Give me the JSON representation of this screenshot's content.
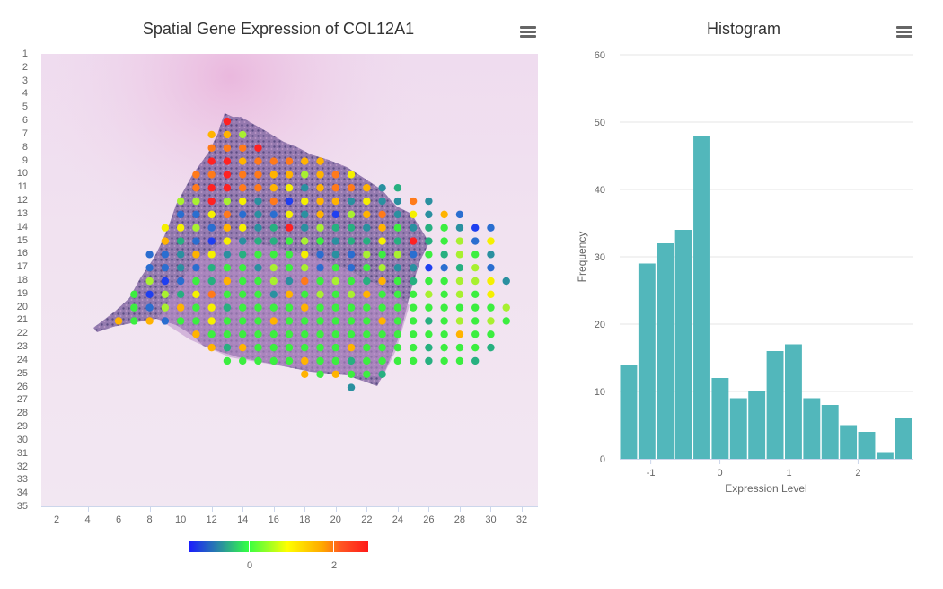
{
  "spatial_panel": {
    "title": "Spatial Gene Expression of COL12A1",
    "menu_icon": "hamburger-menu-icon",
    "colorbar": {
      "ticks": [
        "0",
        "2"
      ],
      "colors": [
        "#1a1aff",
        "#22ff44",
        "#ffff00",
        "#ff9900",
        "#ff1a1a"
      ]
    }
  },
  "histogram_panel": {
    "title": "Histogram",
    "menu_icon": "hamburger-menu-icon"
  },
  "chart_data": [
    {
      "type": "scatter",
      "title": "Spatial Gene Expression of COL12A1",
      "xlabel": "",
      "ylabel": "",
      "x_ticks": [
        "2",
        "4",
        "6",
        "8",
        "10",
        "12",
        "14",
        "16",
        "18",
        "20",
        "22",
        "24",
        "26",
        "28",
        "30",
        "32"
      ],
      "y_ticks": [
        "1",
        "2",
        "3",
        "4",
        "5",
        "6",
        "7",
        "8",
        "9",
        "10",
        "11",
        "12",
        "13",
        "14",
        "15",
        "16",
        "17",
        "18",
        "19",
        "20",
        "21",
        "22",
        "23",
        "24",
        "25",
        "26",
        "27",
        "28",
        "29",
        "30",
        "31",
        "32",
        "33",
        "34",
        "35"
      ],
      "xlim": [
        1,
        33
      ],
      "ylim": [
        1,
        35
      ],
      "y_reversed": true,
      "color_scale": {
        "min": -1.5,
        "max": 2.8,
        "ticks": [
          0,
          2
        ]
      },
      "color_codes": {
        "R": "#ff2222",
        "O": "#ff7a1a",
        "A": "#ffb300",
        "Y": "#f5f000",
        "L": "#a8f030",
        "G": "#3cee40",
        "T": "#27b080",
        "C": "#2a90a0",
        "B": "#2a6ed0",
        "N": "#1f3ff0"
      },
      "spot_rows": [
        {
          "y": 6,
          "x0": 13.0,
          "codes": "R"
        },
        {
          "y": 7,
          "x0": 12.0,
          "codes": "AAL"
        },
        {
          "y": 8,
          "x0": 12.0,
          "codes": "OOOR"
        },
        {
          "y": 9,
          "x0": 12.0,
          "codes": "RRAOOOAA"
        },
        {
          "y": 10,
          "x0": 11.0,
          "codes": "OOROOAALAOY"
        },
        {
          "y": 11,
          "x0": 11.0,
          "codes": "ORROOAYCAOOACT"
        },
        {
          "y": 12,
          "x0": 10.0,
          "codes": "LLRLYCONYAACYCCOC"
        },
        {
          "y": 13,
          "x0": 10.0,
          "codes": "BBYOBCBYCANLAOCYCAB"
        },
        {
          "y": 14,
          "x0": 9.0,
          "codes": "YYLBAYCTRCLTTCAGCTGCNB"
        },
        {
          "y": 15,
          "x0": 9.0,
          "codes": "ATBNYCTTGLGCTTYTRTGLBY"
        },
        {
          "y": 16,
          "x0": 8.0,
          "codes": "BBCAYCTGGGYBCBLGLBGTLGC"
        },
        {
          "y": 17,
          "x0": 8.0,
          "codes": "BBCBTGGCLGLBGBGLCCNBTLB"
        },
        {
          "y": 18,
          "x0": 8.0,
          "codes": "LNBGTAGGLCOGLGTAGTGGLLYC"
        },
        {
          "y": 19,
          "x0": 7.0,
          "codes": "GNLTYOGGGCAGLGLAGGGLGLGY"
        },
        {
          "y": 20,
          "x0": 7.0,
          "codes": "GBLAGYTGGGGAGGGGGGGGGGGGL"
        },
        {
          "y": 21,
          "x0": 6.0,
          "codes": "AGABGGYGGGAGGGGGGAGGTGLGLG"
        },
        {
          "y": 22,
          "x0": 11.0,
          "codes": "AGGGGGGGGGGGGGGGGAGG"
        },
        {
          "y": 23,
          "x0": 12.0,
          "codes": "ATAGGGGGGAGGGGTGGGT"
        },
        {
          "y": 24,
          "x0": 13.0,
          "codes": "GGGGGAGGTGGGGTGGT"
        },
        {
          "y": 25,
          "x0": 18.0,
          "codes": "AGAGGT"
        },
        {
          "y": 26,
          "x0": 21.0,
          "codes": "C"
        }
      ]
    },
    {
      "type": "bar",
      "title": "Histogram",
      "xlabel": "Expression Level",
      "ylabel": "Frequency",
      "xlim": [
        -1.45,
        2.8
      ],
      "ylim": [
        0,
        60
      ],
      "x_ticks": [
        -1,
        0,
        1,
        2
      ],
      "y_ticks": [
        0,
        10,
        20,
        30,
        40,
        50,
        60
      ],
      "grid": true,
      "bin_width": 0.265,
      "bin_start": -1.45,
      "values": [
        14,
        29,
        32,
        34,
        48,
        12,
        9,
        10,
        16,
        17,
        9,
        8,
        5,
        4,
        1,
        6
      ],
      "color": "#52b7bb"
    }
  ]
}
